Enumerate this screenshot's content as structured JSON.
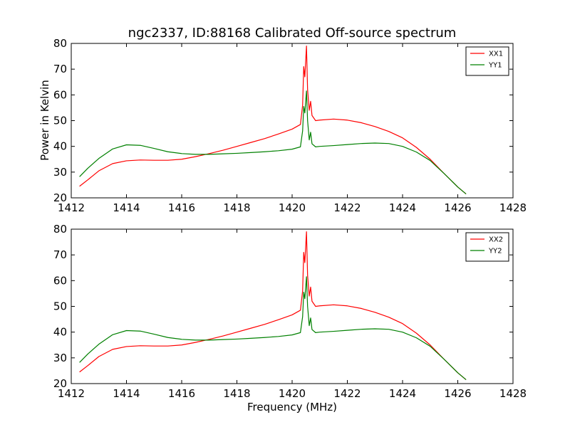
{
  "chart_data": [
    {
      "type": "line",
      "title": "ngc2337, ID:88168 Calibrated Off-source spectrum",
      "xlabel": "",
      "ylabel": "Power in Kelvin",
      "xlim": [
        1412,
        1428
      ],
      "ylim": [
        20,
        80
      ],
      "xticks": [
        1412,
        1414,
        1416,
        1418,
        1420,
        1422,
        1424,
        1426,
        1428
      ],
      "yticks": [
        20,
        30,
        40,
        50,
        60,
        70,
        80
      ],
      "legend": "top-right",
      "grid": false,
      "series": [
        {
          "name": "XX1",
          "color": "#ff0000",
          "points": [
            [
              1412.3,
              24.5
            ],
            [
              1412.6,
              27
            ],
            [
              1413,
              30.5
            ],
            [
              1413.5,
              33.3
            ],
            [
              1414,
              34.4
            ],
            [
              1414.5,
              34.7
            ],
            [
              1415,
              34.6
            ],
            [
              1415.5,
              34.6
            ],
            [
              1416,
              35
            ],
            [
              1416.5,
              36
            ],
            [
              1417,
              37.2
            ],
            [
              1417.5,
              38.5
            ],
            [
              1418,
              40
            ],
            [
              1418.5,
              41.5
            ],
            [
              1419,
              43
            ],
            [
              1419.5,
              44.8
            ],
            [
              1420,
              46.7
            ],
            [
              1420.3,
              48.5
            ],
            [
              1420.38,
              56
            ],
            [
              1420.42,
              71
            ],
            [
              1420.46,
              67
            ],
            [
              1420.52,
              79
            ],
            [
              1420.56,
              62
            ],
            [
              1420.62,
              54
            ],
            [
              1420.67,
              57.5
            ],
            [
              1420.72,
              52
            ],
            [
              1420.85,
              50
            ],
            [
              1421,
              50.2
            ],
            [
              1421.5,
              50.6
            ],
            [
              1422,
              50.2
            ],
            [
              1422.5,
              49.2
            ],
            [
              1423,
              47.7
            ],
            [
              1423.5,
              45.8
            ],
            [
              1424,
              43.3
            ],
            [
              1424.5,
              39.6
            ],
            [
              1425,
              35
            ],
            [
              1425.5,
              29.5
            ],
            [
              1426,
              24.2
            ],
            [
              1426.3,
              21.5
            ]
          ]
        },
        {
          "name": "YY1",
          "color": "#008000",
          "points": [
            [
              1412.3,
              28.2
            ],
            [
              1412.6,
              31.5
            ],
            [
              1413,
              35.3
            ],
            [
              1413.5,
              39
            ],
            [
              1414,
              40.6
            ],
            [
              1414.5,
              40.4
            ],
            [
              1415,
              39.2
            ],
            [
              1415.5,
              37.9
            ],
            [
              1416,
              37.2
            ],
            [
              1416.5,
              36.9
            ],
            [
              1417,
              36.9
            ],
            [
              1417.5,
              37.1
            ],
            [
              1418,
              37.3
            ],
            [
              1418.5,
              37.6
            ],
            [
              1419,
              37.9
            ],
            [
              1419.5,
              38.3
            ],
            [
              1420,
              38.9
            ],
            [
              1420.3,
              39.8
            ],
            [
              1420.38,
              46
            ],
            [
              1420.42,
              55.5
            ],
            [
              1420.46,
              53
            ],
            [
              1420.52,
              61.5
            ],
            [
              1420.56,
              50
            ],
            [
              1420.62,
              42.5
            ],
            [
              1420.67,
              45.5
            ],
            [
              1420.72,
              41
            ],
            [
              1420.85,
              39.8
            ],
            [
              1421,
              40
            ],
            [
              1421.5,
              40.3
            ],
            [
              1422,
              40.7
            ],
            [
              1422.5,
              41.1
            ],
            [
              1423,
              41.3
            ],
            [
              1423.5,
              41.1
            ],
            [
              1424,
              40
            ],
            [
              1424.5,
              37.8
            ],
            [
              1425,
              34.5
            ],
            [
              1425.5,
              29.5
            ],
            [
              1426,
              24.2
            ],
            [
              1426.3,
              21.5
            ]
          ]
        }
      ]
    },
    {
      "type": "line",
      "title": "",
      "xlabel": "Frequency (MHz)",
      "ylabel": "",
      "xlim": [
        1412,
        1428
      ],
      "ylim": [
        20,
        80
      ],
      "xticks": [
        1412,
        1414,
        1416,
        1418,
        1420,
        1422,
        1424,
        1426,
        1428
      ],
      "yticks": [
        20,
        30,
        40,
        50,
        60,
        70,
        80
      ],
      "legend": "top-right",
      "grid": false,
      "series": [
        {
          "name": "XX2",
          "color": "#ff0000",
          "points": [
            [
              1412.3,
              24.5
            ],
            [
              1412.6,
              27
            ],
            [
              1413,
              30.5
            ],
            [
              1413.5,
              33.3
            ],
            [
              1414,
              34.4
            ],
            [
              1414.5,
              34.7
            ],
            [
              1415,
              34.6
            ],
            [
              1415.5,
              34.6
            ],
            [
              1416,
              35
            ],
            [
              1416.5,
              36
            ],
            [
              1417,
              37.2
            ],
            [
              1417.5,
              38.5
            ],
            [
              1418,
              40
            ],
            [
              1418.5,
              41.5
            ],
            [
              1419,
              43
            ],
            [
              1419.5,
              44.8
            ],
            [
              1420,
              46.7
            ],
            [
              1420.3,
              48.5
            ],
            [
              1420.38,
              56
            ],
            [
              1420.42,
              71
            ],
            [
              1420.46,
              67
            ],
            [
              1420.52,
              79
            ],
            [
              1420.56,
              62
            ],
            [
              1420.62,
              54
            ],
            [
              1420.67,
              57.5
            ],
            [
              1420.72,
              52
            ],
            [
              1420.85,
              50
            ],
            [
              1421,
              50.2
            ],
            [
              1421.5,
              50.6
            ],
            [
              1422,
              50.2
            ],
            [
              1422.5,
              49.2
            ],
            [
              1423,
              47.7
            ],
            [
              1423.5,
              45.8
            ],
            [
              1424,
              43.3
            ],
            [
              1424.5,
              39.6
            ],
            [
              1425,
              35
            ],
            [
              1425.5,
              29.5
            ],
            [
              1426,
              24.2
            ],
            [
              1426.3,
              21.5
            ]
          ]
        },
        {
          "name": "YY2",
          "color": "#008000",
          "points": [
            [
              1412.3,
              28.2
            ],
            [
              1412.6,
              31.5
            ],
            [
              1413,
              35.3
            ],
            [
              1413.5,
              39
            ],
            [
              1414,
              40.6
            ],
            [
              1414.5,
              40.4
            ],
            [
              1415,
              39.2
            ],
            [
              1415.5,
              37.9
            ],
            [
              1416,
              37.2
            ],
            [
              1416.5,
              36.9
            ],
            [
              1417,
              36.9
            ],
            [
              1417.5,
              37.1
            ],
            [
              1418,
              37.3
            ],
            [
              1418.5,
              37.6
            ],
            [
              1419,
              37.9
            ],
            [
              1419.5,
              38.3
            ],
            [
              1420,
              38.9
            ],
            [
              1420.3,
              39.8
            ],
            [
              1420.38,
              46
            ],
            [
              1420.42,
              55.5
            ],
            [
              1420.46,
              53
            ],
            [
              1420.52,
              61.5
            ],
            [
              1420.56,
              50
            ],
            [
              1420.62,
              42.5
            ],
            [
              1420.67,
              45.5
            ],
            [
              1420.72,
              41
            ],
            [
              1420.85,
              39.8
            ],
            [
              1421,
              40
            ],
            [
              1421.5,
              40.3
            ],
            [
              1422,
              40.7
            ],
            [
              1422.5,
              41.1
            ],
            [
              1423,
              41.3
            ],
            [
              1423.5,
              41.1
            ],
            [
              1424,
              40
            ],
            [
              1424.5,
              37.8
            ],
            [
              1425,
              34.5
            ],
            [
              1425.5,
              29.5
            ],
            [
              1426,
              24.2
            ],
            [
              1426.3,
              21.5
            ]
          ]
        }
      ]
    }
  ]
}
